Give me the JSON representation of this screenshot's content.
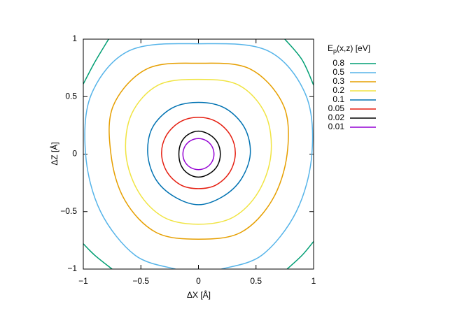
{
  "chart_data": {
    "type": "contour",
    "xlabel": "ΔX [Å]",
    "ylabel": "ΔZ [Å]",
    "legend_title": {
      "base": "E",
      "sub": "p",
      "rest": "(x,z) [eV]"
    },
    "legend": "outside-right",
    "xlim": [
      -1,
      1
    ],
    "ylim": [
      -1,
      1
    ],
    "xticks": [
      {
        "value": -1,
        "label": "−1"
      },
      {
        "value": -0.5,
        "label": "−0.5"
      },
      0,
      0.5,
      1
    ],
    "yticks": [
      {
        "value": -1,
        "label": "−1"
      },
      {
        "value": -0.5,
        "label": "−0.5"
      },
      0,
      0.5,
      1
    ],
    "grid": false,
    "series": [
      {
        "name": 0.8,
        "color": "#009e73",
        "x": [
          -1,
          -0.9,
          -0.78,
          null,
          0.75,
          0.9,
          1,
          null,
          1,
          0.9,
          0.77,
          null,
          -0.75,
          -0.9,
          -1
        ],
        "y": [
          0.61,
          0.8,
          1,
          null,
          1,
          0.82,
          0.6,
          null,
          -0.76,
          -0.88,
          -1,
          null,
          -1,
          -0.88,
          -0.78
        ]
      },
      {
        "name": 0.5,
        "color": "#56b4e9",
        "x": [
          0.2,
          0.55,
          0.85,
          0.985,
          0.93,
          0.6,
          0,
          -0.6,
          -0.93,
          -0.98,
          -0.85,
          -0.55,
          -0.2
        ],
        "y": [
          -1,
          -0.88,
          -0.5,
          0,
          0.52,
          0.9,
          0.96,
          0.9,
          0.52,
          0,
          -0.5,
          -0.88,
          -1
        ]
      },
      {
        "name": 0.3,
        "color": "#e69f00",
        "x": [
          0.77,
          0.74,
          0.45,
          0,
          -0.45,
          -0.74,
          -0.76,
          -0.64,
          -0.37,
          0,
          0.37,
          0.64,
          0.77
        ],
        "y": [
          0,
          0.42,
          0.74,
          0.79,
          0.74,
          0.42,
          0,
          -0.4,
          -0.68,
          -0.74,
          -0.68,
          -0.4,
          0
        ]
      },
      {
        "name": 0.2,
        "color": "#f0e442",
        "x": [
          0.63,
          0.58,
          0.35,
          0,
          -0.35,
          -0.58,
          -0.63,
          -0.52,
          -0.3,
          0,
          0.3,
          0.52,
          0.63
        ],
        "y": [
          0,
          0.35,
          0.6,
          0.65,
          0.6,
          0.35,
          0,
          -0.33,
          -0.55,
          -0.61,
          -0.55,
          -0.33,
          0
        ]
      },
      {
        "name": 0.1,
        "color": "#0072b2",
        "x": [
          0.45,
          0.4,
          0.23,
          0,
          -0.23,
          -0.4,
          -0.44,
          -0.37,
          -0.21,
          0,
          0.21,
          0.37,
          0.45
        ],
        "y": [
          0,
          0.23,
          0.4,
          0.45,
          0.4,
          0.23,
          0,
          -0.22,
          -0.37,
          -0.44,
          -0.37,
          -0.22,
          0
        ]
      },
      {
        "name": 0.05,
        "color": "#e51e10",
        "x": [
          0.32,
          0.28,
          0.16,
          0,
          -0.16,
          -0.28,
          -0.32,
          -0.27,
          -0.15,
          0,
          0.15,
          0.27,
          0.32
        ],
        "y": [
          0,
          0.16,
          0.28,
          0.32,
          0.28,
          0.16,
          0,
          -0.16,
          -0.27,
          -0.3,
          -0.27,
          -0.16,
          0
        ]
      },
      {
        "name": 0.02,
        "color": "#000000",
        "x": [
          0.19,
          0.165,
          0.095,
          0,
          -0.09,
          -0.15,
          -0.17,
          -0.15,
          -0.09,
          0,
          0.095,
          0.165,
          0.19
        ],
        "y": [
          0,
          0.1,
          0.17,
          0.2,
          0.17,
          0.1,
          0,
          -0.1,
          -0.17,
          -0.2,
          -0.17,
          -0.1,
          0
        ]
      },
      {
        "name": 0.01,
        "color": "#9400d3",
        "x": [
          0.135,
          0.117,
          0.068,
          0,
          -0.068,
          -0.117,
          -0.135,
          -0.117,
          -0.068,
          0,
          0.068,
          0.117,
          0.135
        ],
        "y": [
          0,
          0.068,
          0.117,
          0.135,
          0.117,
          0.068,
          0,
          -0.068,
          -0.117,
          -0.135,
          -0.117,
          -0.068,
          0
        ]
      }
    ]
  }
}
